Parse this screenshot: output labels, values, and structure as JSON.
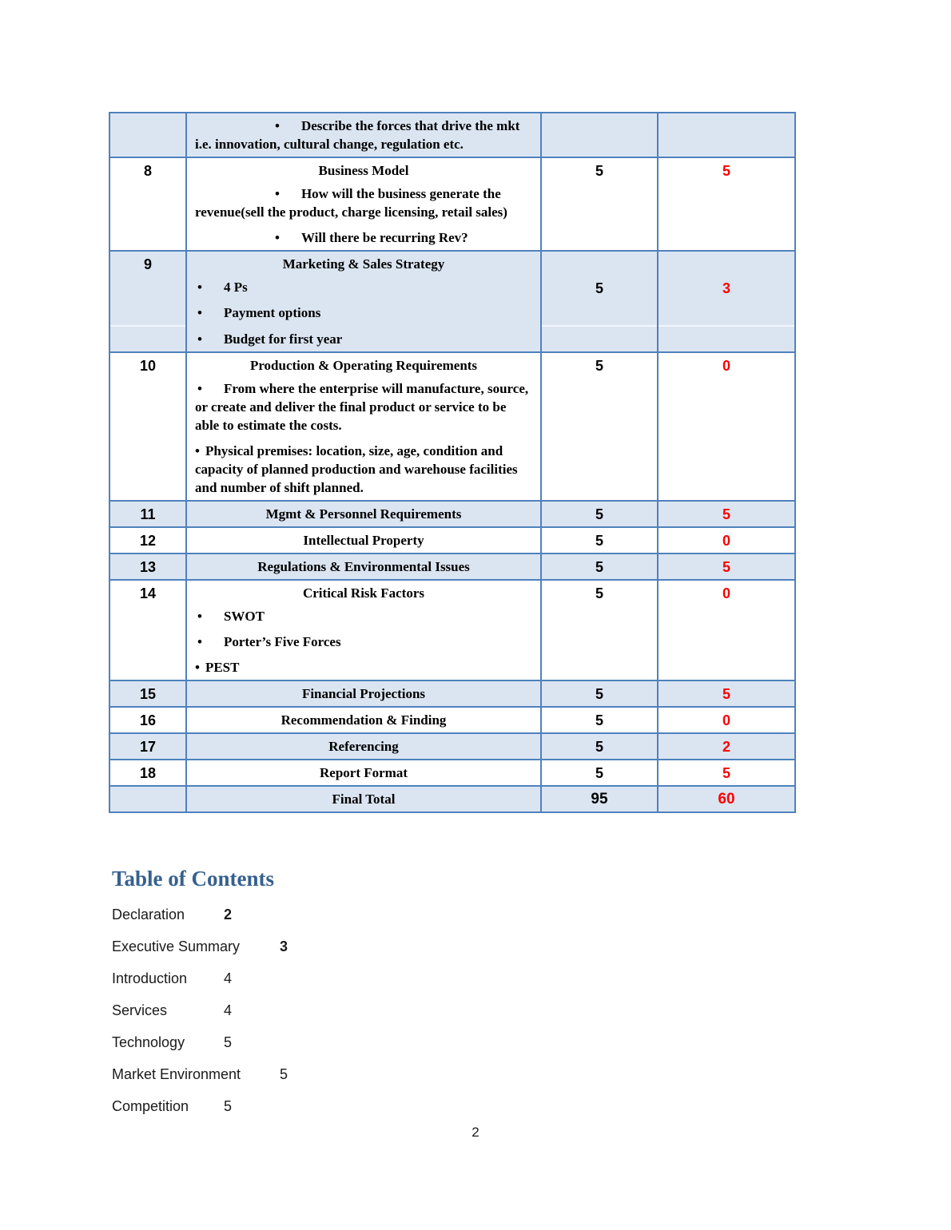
{
  "icons": {
    "bullet": "•"
  },
  "colors": {
    "table_border": "#4f81bd",
    "shaded_row": "#dbe5f1",
    "score_red": "#ff0000",
    "heading_blue": "#36618f"
  },
  "table": {
    "rows": [
      {
        "num": "",
        "shaded": true,
        "points": "",
        "score": "",
        "paras": [
          {
            "t": "bullet_indent",
            "text": "Describe the forces that drive the mkt i.e. innovation, cultural change, regulation etc."
          }
        ]
      },
      {
        "num": "8",
        "shaded": false,
        "points": "5",
        "score": "5",
        "paras": [
          {
            "t": "title",
            "text": "Business Model"
          },
          {
            "t": "bullet_indent",
            "text": "How will the business generate the revenue(sell the product, charge licensing, retail sales)"
          },
          {
            "t": "bullet_indent",
            "text": "Will there be recurring Rev?"
          }
        ]
      },
      {
        "num": "9",
        "shaded": true,
        "valign": "middle",
        "points": "5",
        "score": "3",
        "paras": [
          {
            "t": "title",
            "text": "Marketing & Sales Strategy"
          },
          {
            "t": "bullet_left",
            "text": "4 Ps"
          },
          {
            "t": "bullet_left",
            "text": "Payment options"
          }
        ]
      },
      {
        "num": "",
        "shaded": true,
        "subrow": true,
        "points": "",
        "score": "",
        "paras": [
          {
            "t": "bullet_left",
            "text": "Budget for first year"
          }
        ]
      },
      {
        "num": "10",
        "shaded": false,
        "points": "5",
        "score": "0",
        "paras": [
          {
            "t": "title",
            "text": "Production & Operating Requirements"
          },
          {
            "t": "bullet_left",
            "text": "From where the enterprise will manufacture, source, or create and deliver the final product or service to be able to estimate the costs."
          },
          {
            "t": "plain_bullet",
            "text": "Physical premises: location, size, age, condition and capacity of planned production and warehouse facilities and number of shift planned."
          }
        ]
      },
      {
        "num": "11",
        "shaded": true,
        "points": "5",
        "score": "5",
        "paras": [
          {
            "t": "title",
            "text": "Mgmt & Personnel Requirements"
          }
        ]
      },
      {
        "num": "12",
        "shaded": false,
        "points": "5",
        "score": "0",
        "paras": [
          {
            "t": "title",
            "text": "Intellectual Property"
          }
        ]
      },
      {
        "num": "13",
        "shaded": true,
        "points": "5",
        "score": "5",
        "paras": [
          {
            "t": "title",
            "text": "Regulations & Environmental Issues"
          }
        ]
      },
      {
        "num": "14",
        "shaded": false,
        "points": "5",
        "score": "0",
        "paras": [
          {
            "t": "title",
            "text": "Critical Risk Factors"
          },
          {
            "t": "bullet_left",
            "text": "SWOT"
          },
          {
            "t": "bullet_left",
            "text": "Porter’s Five Forces"
          },
          {
            "t": "plain_bullet",
            "text": "PEST"
          }
        ]
      },
      {
        "num": "15",
        "shaded": true,
        "points": "5",
        "score": "5",
        "paras": [
          {
            "t": "title",
            "text": "Financial Projections"
          }
        ]
      },
      {
        "num": "16",
        "shaded": false,
        "points": "5",
        "score": "0",
        "paras": [
          {
            "t": "title",
            "text": "Recommendation & Finding"
          }
        ]
      },
      {
        "num": "17",
        "shaded": true,
        "points": "5",
        "score": "2",
        "paras": [
          {
            "t": "title",
            "text": "Referencing"
          }
        ]
      },
      {
        "num": "18",
        "shaded": false,
        "points": "5",
        "score": "5",
        "paras": [
          {
            "t": "title",
            "text": "Report Format"
          }
        ]
      },
      {
        "num": "",
        "shaded": true,
        "total": true,
        "points": "95",
        "score": "60",
        "paras": [
          {
            "t": "title",
            "text": "Final Total"
          }
        ]
      }
    ]
  },
  "toc": {
    "title": "Table of Contents",
    "entries": [
      {
        "label": "Declaration",
        "page": "2",
        "bold": true
      },
      {
        "label": "Executive Summary",
        "page": "3",
        "bold": true
      },
      {
        "label": "Introduction",
        "page": "4",
        "bold": false
      },
      {
        "label": "Services",
        "page": "4",
        "bold": false
      },
      {
        "label": "Technology",
        "page": "5",
        "bold": false
      },
      {
        "label": "Market Environment",
        "page": "5",
        "bold": false
      },
      {
        "label": "Competition",
        "page": "5",
        "bold": false
      }
    ]
  },
  "footer": {
    "page_number": "2"
  }
}
